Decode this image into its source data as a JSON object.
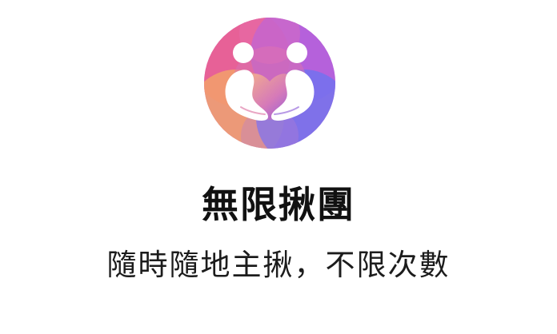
{
  "feature": {
    "icon": "caring-hands-heart-icon",
    "title": "無限揪團",
    "subtitle": "隨時隨地主揪，不限次數"
  },
  "colors": {
    "pink": "#e8609a",
    "purple": "#9a5be0",
    "orange": "#f09a6e",
    "blue": "#6f7ef0",
    "text": "#111111"
  }
}
